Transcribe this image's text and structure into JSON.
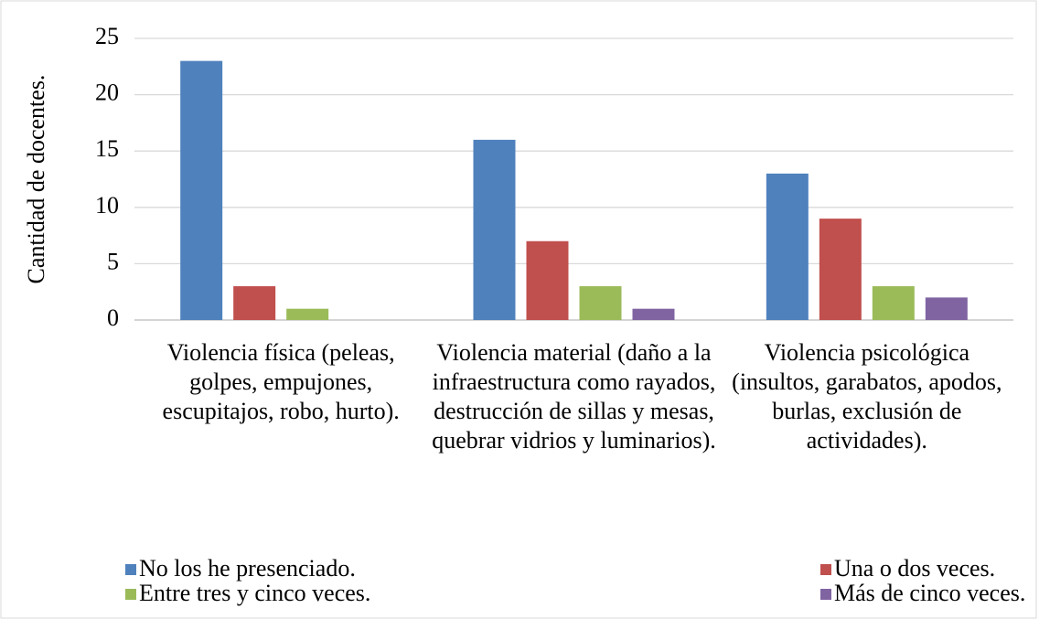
{
  "chart_data": {
    "type": "bar",
    "y_label": "Cantidad de docentes.",
    "categories": [
      "Violencia física (peleas, golpes, empujones, escupitajos, robo, hurto).",
      "Violencia material (daño a la infraestructura como rayados, destrucción de sillas y mesas, quebrar vidrios y luminarios).",
      "Violencia psicológica (insultos, garabatos, apodos, burlas, exclusión de actividades)."
    ],
    "series": [
      {
        "name": "No los he presenciado.",
        "color": "#4f81bd",
        "values": [
          23,
          16,
          13
        ]
      },
      {
        "name": "Una o dos veces.",
        "color": "#c0504d",
        "values": [
          3,
          7,
          9
        ]
      },
      {
        "name": "Entre tres y cinco veces.",
        "color": "#9bbb59",
        "values": [
          1,
          3,
          3
        ]
      },
      {
        "name": "Más de cinco veces.",
        "color": "#8064a2",
        "values": [
          0,
          1,
          2
        ]
      }
    ],
    "ylim": [
      0,
      25
    ],
    "yticks": [
      0,
      5,
      10,
      15,
      20,
      25
    ],
    "grid": true,
    "legend": "bottom"
  }
}
